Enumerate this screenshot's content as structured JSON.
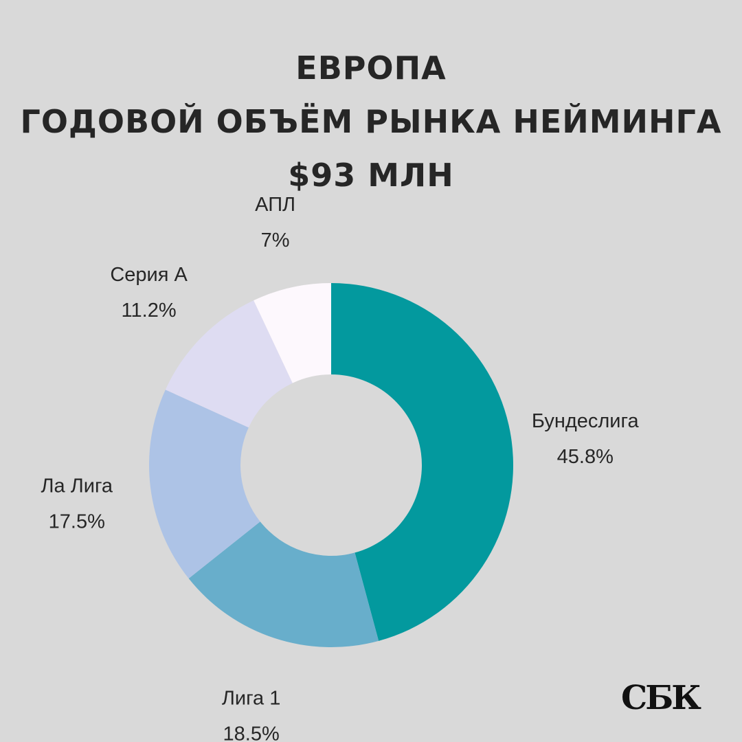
{
  "title": {
    "line1": "ЕВРОПА",
    "line2": "ГОДОВОЙ ОБЪЁМ РЫНКА НЕЙМИНГА",
    "line3": "$93 МЛН"
  },
  "logo": {
    "text": "СБК"
  },
  "chart_data": {
    "type": "pie",
    "donut": true,
    "start": "12 o'clock",
    "direction": "clockwise",
    "slices": [
      {
        "label": "Бундеслига",
        "value": 45.8,
        "value_label": "45.8%",
        "color": "#03999e"
      },
      {
        "label": "Лига 1",
        "value": 18.5,
        "value_label": "18.5%",
        "color": "#68aecb"
      },
      {
        "label": "Ла Лига",
        "value": 17.5,
        "value_label": "17.5%",
        "color": "#adc3e6"
      },
      {
        "label": "Серия А",
        "value": 11.2,
        "value_label": "11.2%",
        "color": "#dedcf2"
      },
      {
        "label": "АПЛ",
        "value": 7,
        "value_label": "7%",
        "color": "#fdf8fd"
      }
    ]
  }
}
